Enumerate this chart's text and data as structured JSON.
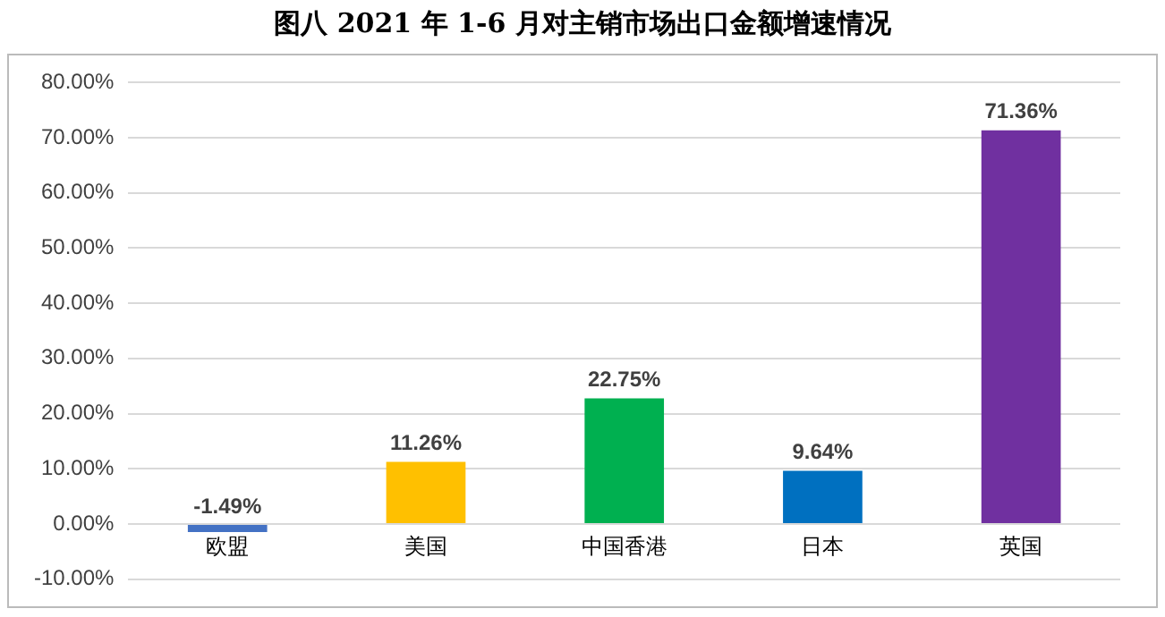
{
  "chart_data": {
    "type": "bar",
    "title": "图八  2021 年 1-6 月对主销市场出口金额增速情况",
    "categories": [
      "欧盟",
      "美国",
      "中国香港",
      "日本",
      "英国"
    ],
    "values": [
      -1.49,
      11.26,
      22.75,
      9.64,
      71.36
    ],
    "colors": [
      "#4472c4",
      "#ffc000",
      "#00b050",
      "#0070c0",
      "#7030a0"
    ],
    "value_labels": [
      "-1.49%",
      "11.26%",
      "22.75%",
      "9.64%",
      "71.36%"
    ],
    "ylim": [
      -10,
      80
    ],
    "yticks": [
      {
        "value": -10,
        "label": "-10.00%"
      },
      {
        "value": 0,
        "label": "0.00%"
      },
      {
        "value": 10,
        "label": "10.00%"
      },
      {
        "value": 20,
        "label": "20.00%"
      },
      {
        "value": 30,
        "label": "30.00%"
      },
      {
        "value": 40,
        "label": "40.00%"
      },
      {
        "value": 50,
        "label": "50.00%"
      },
      {
        "value": 60,
        "label": "60.00%"
      },
      {
        "value": 70,
        "label": "70.00%"
      },
      {
        "value": 80,
        "label": "80.00%"
      }
    ],
    "grid": "y",
    "legend": false
  }
}
